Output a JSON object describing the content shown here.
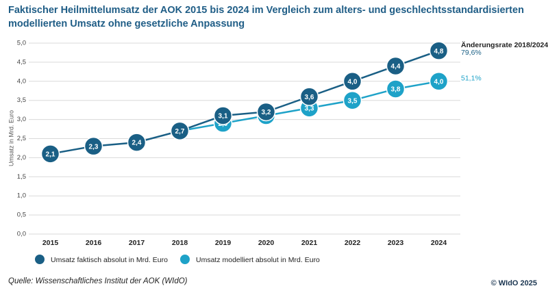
{
  "chart_data": {
    "type": "line",
    "title": [
      "Faktischer Heilmittelumsatz der AOK 2015 bis 2024 im Vergleich zum alters- und geschlechtsstandardisierten",
      "modellierten Umsatz ohne gesetzliche Anpassung"
    ],
    "y_label": "Umsatz in Mrd. Euro",
    "categories": [
      "2015",
      "2016",
      "2017",
      "2018",
      "2019",
      "2020",
      "2021",
      "2022",
      "2023",
      "2024"
    ],
    "series": [
      {
        "name": "Umsatz faktisch absolut in Mrd. Euro",
        "color": "#1a5f85",
        "values": [
          2.1,
          2.3,
          2.4,
          2.7,
          3.1,
          3.2,
          3.6,
          4.0,
          4.4,
          4.8
        ],
        "value_labels": [
          "2,1",
          "2,3",
          "2,4",
          "2,7",
          "3,1",
          "3,2",
          "3,6",
          "4,0",
          "4,4",
          "4,8"
        ]
      },
      {
        "name": "Umsatz modelliert absolut in Mrd. Euro",
        "color": "#1ea2c8",
        "values": [
          null,
          null,
          null,
          2.7,
          2.9,
          3.1,
          3.3,
          3.5,
          3.8,
          4.0
        ],
        "value_labels": [
          null,
          null,
          null,
          null,
          "2,9",
          "3,1",
          "3,3",
          "3,5",
          "3,8",
          "4,0"
        ]
      }
    ],
    "ylim": [
      0,
      5
    ],
    "yticks": [
      {
        "value": 0,
        "label": "0,0"
      },
      {
        "value": 0.5,
        "label": "0,5"
      },
      {
        "value": 1,
        "label": "1,0"
      },
      {
        "value": 1.5,
        "label": "1,5"
      },
      {
        "value": 2,
        "label": "2,0"
      },
      {
        "value": 2.5,
        "label": "2,5"
      },
      {
        "value": 3,
        "label": "3,0"
      },
      {
        "value": 3.5,
        "label": "3,5"
      },
      {
        "value": 4,
        "label": "4,0"
      },
      {
        "value": 4.5,
        "label": "4,5"
      },
      {
        "value": 5,
        "label": "5,0"
      }
    ],
    "grid": true,
    "annotations": {
      "header": "Änderungsrate 2018/2024",
      "rates": [
        "79,6%",
        "51,1%"
      ]
    },
    "source": "Quelle: Wissenschaftliches Institut der AOK (WIdO)",
    "copyright": "© WIdO 2025"
  }
}
